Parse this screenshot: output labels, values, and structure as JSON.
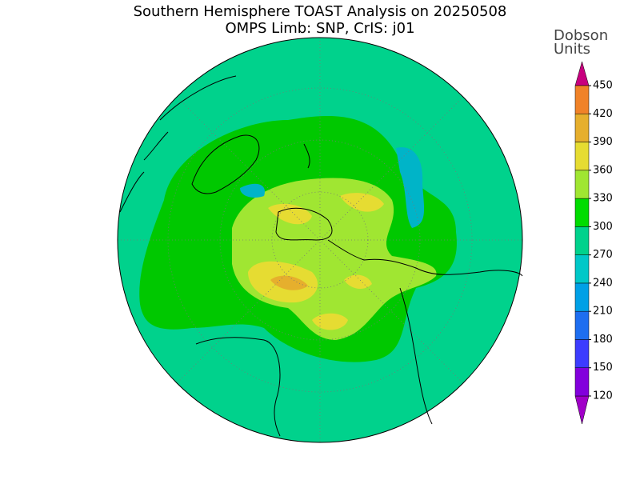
{
  "title": [
    "Southern Hemisphere TOAST Analysis on 20250508",
    "OMPS Limb: SNP, CrIS: j01"
  ],
  "colorbar": {
    "label": [
      "Dobson",
      "Units"
    ],
    "ticks": [
      120,
      150,
      180,
      210,
      240,
      270,
      300,
      330,
      360,
      390,
      420,
      450
    ],
    "colors": [
      "#a000c8",
      "#8200dc",
      "#3c3cff",
      "#1e6ef0",
      "#00a0e6",
      "#00c8c8",
      "#00d28c",
      "#00dc00",
      "#a0e632",
      "#e6dc32",
      "#e6af2d",
      "#f08228",
      "#fa3c3c",
      "#c8007f"
    ]
  }
}
